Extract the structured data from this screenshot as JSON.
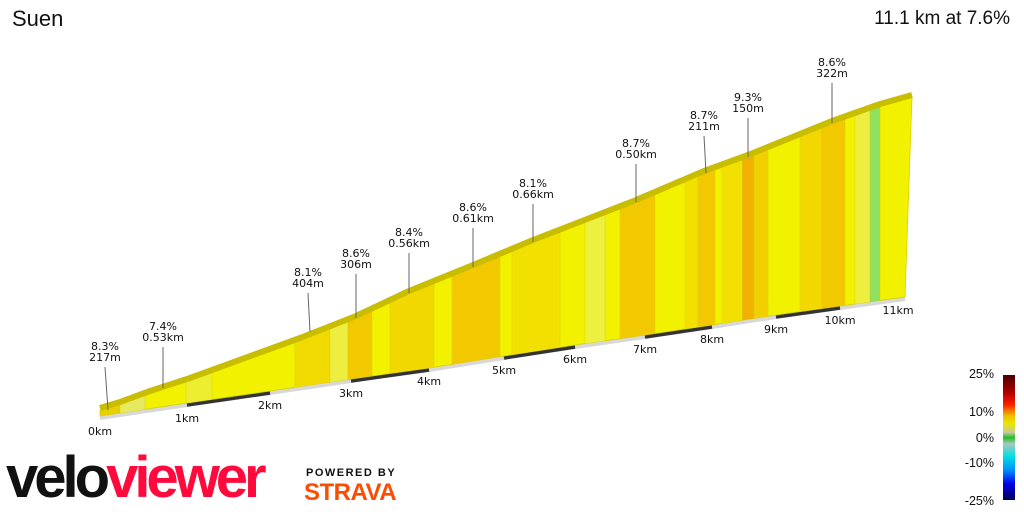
{
  "header": {
    "title": "Suen",
    "summary": "11.1 km at 7.6%"
  },
  "chart_data": {
    "type": "area",
    "title": "Suen",
    "subtitle": "11.1 km at 7.6%",
    "x_ticks": [
      "0km",
      "1km",
      "2km",
      "3km",
      "4km",
      "5km",
      "6km",
      "7km",
      "8km",
      "9km",
      "10km",
      "11km"
    ],
    "xlim": [
      0,
      11.1
    ],
    "annotations": [
      {
        "grade": "8.3%",
        "length": "217m"
      },
      {
        "grade": "7.4%",
        "length": "0.53km"
      },
      {
        "grade": "8.1%",
        "length": "404m"
      },
      {
        "grade": "8.6%",
        "length": "306m"
      },
      {
        "grade": "8.4%",
        "length": "0.56km"
      },
      {
        "grade": "8.6%",
        "length": "0.61km"
      },
      {
        "grade": "8.1%",
        "length": "0.66km"
      },
      {
        "grade": "8.7%",
        "length": "0.50km"
      },
      {
        "grade": "8.7%",
        "length": "211m"
      },
      {
        "grade": "9.3%",
        "length": "150m"
      },
      {
        "grade": "8.6%",
        "length": "322m"
      }
    ],
    "legend": {
      "labels": [
        "25%",
        "10%",
        "0%",
        "-10%",
        "-25%"
      ],
      "placement": "bottom-right"
    },
    "colors": {
      "base": "#f2f200",
      "steep": "#f2c800",
      "flat": "#90e060"
    }
  },
  "branding": {
    "logo_part1": "velo",
    "logo_part2": "viewer",
    "powered_by": "POWERED BY",
    "strava": "STRAVA"
  }
}
